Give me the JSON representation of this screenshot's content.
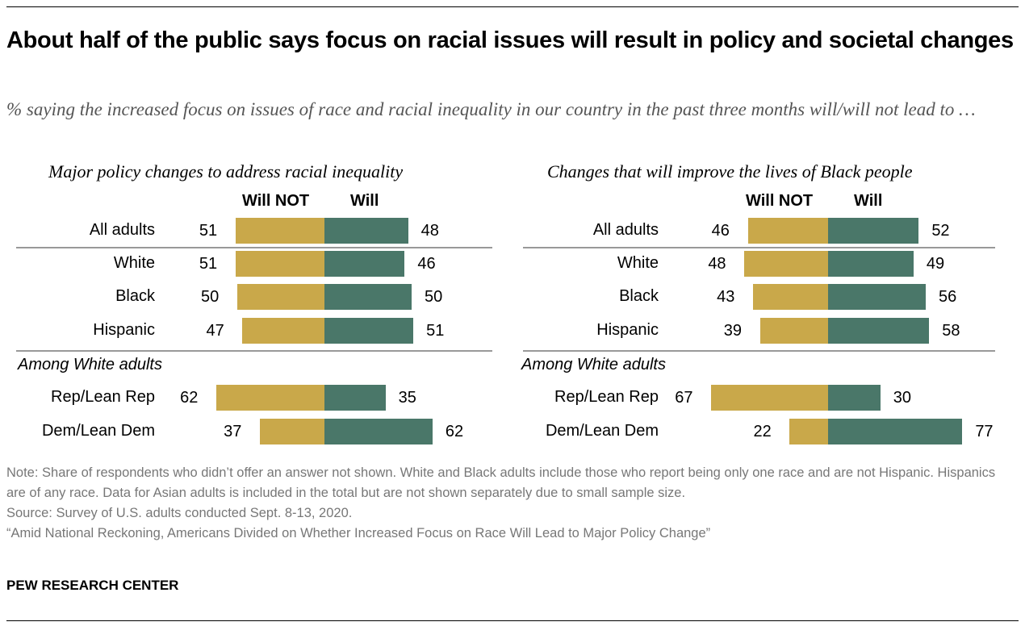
{
  "title": "About half of the public says focus on racial issues will result in policy and societal changes",
  "subtitle": "% saying the increased focus on issues of race and racial inequality in our country in the past three months will/will not lead to …",
  "colors": {
    "will_not": "#C9A84A",
    "will": "#4A7769"
  },
  "chart_data": [
    {
      "type": "bar",
      "orientation": "horizontal-diverging",
      "title": "Major policy changes to address racial inequality",
      "categories": [
        "All adults",
        "White",
        "Black",
        "Hispanic",
        "Rep/Lean Rep",
        "Dem/Lean Dem"
      ],
      "group_label": "Among White adults",
      "series": [
        {
          "name": "Will NOT",
          "values": [
            51,
            51,
            50,
            47,
            62,
            37
          ]
        },
        {
          "name": "Will",
          "values": [
            48,
            46,
            50,
            51,
            35,
            62
          ]
        }
      ]
    },
    {
      "type": "bar",
      "orientation": "horizontal-diverging",
      "title": "Changes that will improve the lives of Black people",
      "categories": [
        "All adults",
        "White",
        "Black",
        "Hispanic",
        "Rep/Lean Rep",
        "Dem/Lean Dem"
      ],
      "group_label": "Among White adults",
      "series": [
        {
          "name": "Will NOT",
          "values": [
            46,
            48,
            43,
            39,
            67,
            22
          ]
        },
        {
          "name": "Will",
          "values": [
            52,
            49,
            56,
            58,
            30,
            77
          ]
        }
      ]
    }
  ],
  "notes": [
    "Note: Share of respondents who didn’t offer an answer not shown. White and Black adults include those who report being only one race and are not Hispanic. Hispanics are of any race. Data for Asian adults is included in the total but are not shown separately due to small sample size.",
    "Source: Survey of U.S. adults conducted Sept. 8-13, 2020.",
    "“Amid National Reckoning, Americans Divided on Whether Increased Focus on Race Will Lead to Major Policy Change”"
  ],
  "brand": "PEW RESEARCH CENTER"
}
